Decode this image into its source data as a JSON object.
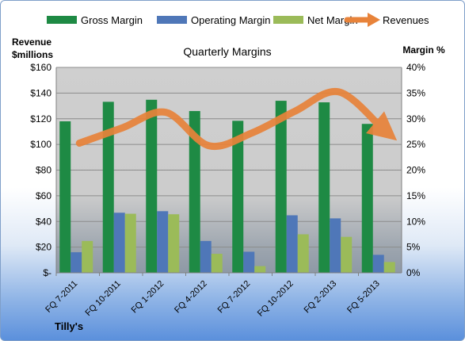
{
  "company": "Tilly's",
  "chart_data": {
    "type": "bar",
    "title": "Quarterly Margins",
    "ylabel_left": "Revenue $millions",
    "ylabel_right": "Margin %",
    "categories": [
      "FQ 7-2011",
      "FQ 10-2011",
      "FQ 1-2012",
      "FQ 4-2012",
      "FQ 7-2012",
      "FQ 10-2012",
      "FQ 2-2013",
      "FQ 5-2013"
    ],
    "left_ticks": [
      "$-",
      "$20",
      "$40",
      "$60",
      "$80",
      "$100",
      "$120",
      "$140",
      "$160"
    ],
    "right_ticks": [
      "0%",
      "5%",
      "10%",
      "15%",
      "20%",
      "25%",
      "30%",
      "35%",
      "40%"
    ],
    "ylim_left": [
      0,
      160
    ],
    "ylim_right": [
      0,
      40
    ],
    "legend_position": "top",
    "grid": true,
    "series": [
      {
        "name": "Gross Margin",
        "axis": "right",
        "color": "#1e8a44",
        "values": [
          29.5,
          33.3,
          33.7,
          31.5,
          29.6,
          33.5,
          33.2,
          29.0
        ]
      },
      {
        "name": "Operating Margin",
        "axis": "right",
        "color": "#4f77b8",
        "values": [
          4.0,
          11.7,
          12.0,
          6.2,
          4.1,
          11.2,
          10.6,
          3.5
        ]
      },
      {
        "name": "Net Margin",
        "axis": "right",
        "color": "#9bbb59",
        "values": [
          6.2,
          11.5,
          11.4,
          3.7,
          1.3,
          7.5,
          7.0,
          2.1
        ]
      },
      {
        "name": "Revenues",
        "axis": "left",
        "type": "line",
        "color": "#e8833a",
        "values": [
          101,
          113,
          125,
          99,
          109,
          126,
          141,
          113
        ]
      }
    ]
  }
}
